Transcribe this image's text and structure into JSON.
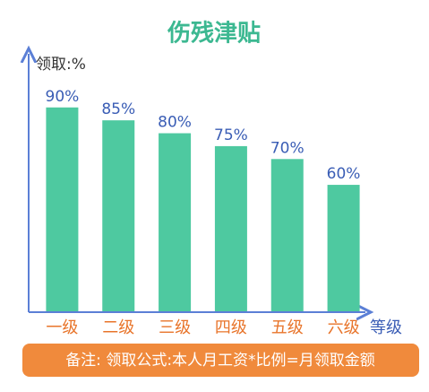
{
  "chart_data": {
    "type": "bar",
    "title": "伤残津贴",
    "y_label": "领取:%",
    "x_label": "等级",
    "categories": [
      "一级",
      "二级",
      "三级",
      "四级",
      "五级",
      "六级"
    ],
    "values": [
      90,
      85,
      80,
      75,
      70,
      60
    ],
    "value_labels": [
      "90%",
      "85%",
      "80%",
      "75%",
      "70%",
      "60%"
    ],
    "color": "#4ec9a0",
    "ylim": [
      11,
      100
    ],
    "note": "备注: 领取公式:本人月工资*比例=月领取金额"
  }
}
